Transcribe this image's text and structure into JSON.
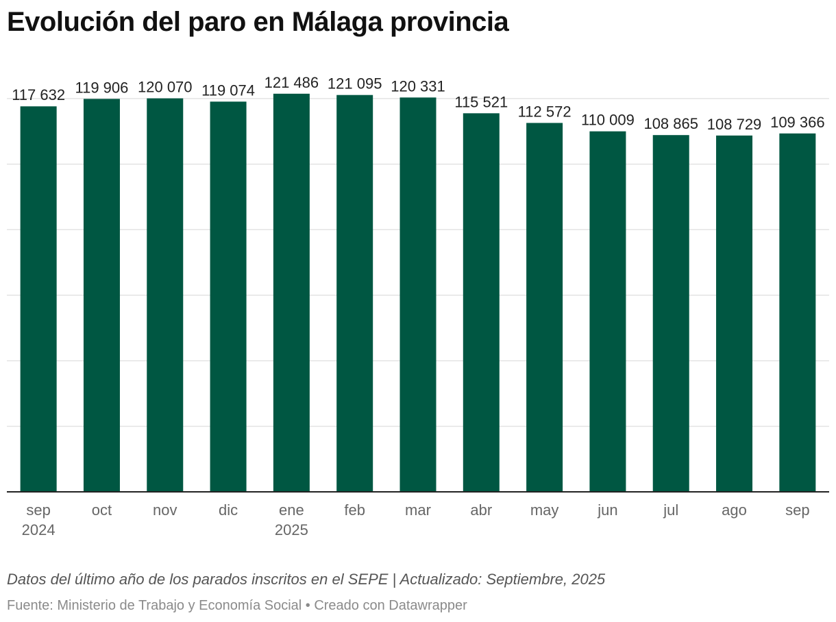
{
  "title": "Evolución del paro en Málaga provincia",
  "notes": "Datos del último año de los parados inscritos en el SEPE | Actualizado: Septiembre, 2025",
  "footer": "Fuente: Ministerio de Trabajo y Economía Social • Creado con Datawrapper",
  "colors": {
    "bar": "#005742",
    "grid": "#e3e3e3",
    "axis": "#222222"
  },
  "chart_data": {
    "type": "bar",
    "title": "Evolución del paro en Málaga provincia",
    "xlabel": "",
    "ylabel": "",
    "ylim": [
      0,
      125000
    ],
    "grid": true,
    "categories": [
      "sep",
      "oct",
      "nov",
      "dic",
      "ene",
      "feb",
      "mar",
      "abr",
      "may",
      "jun",
      "jul",
      "ago",
      "sep"
    ],
    "sublabels": [
      "2024",
      "",
      "",
      "",
      "2025",
      "",
      "",
      "",
      "",
      "",
      "",
      "",
      ""
    ],
    "values": [
      117632,
      119906,
      120070,
      119074,
      121486,
      121095,
      120331,
      115521,
      112572,
      110009,
      108865,
      108729,
      109366
    ],
    "value_labels": [
      "117 632",
      "119 906",
      "120 070",
      "119 074",
      "121 486",
      "121 095",
      "120 331",
      "115 521",
      "112 572",
      "110 009",
      "108 865",
      "108 729",
      "109 366"
    ]
  }
}
